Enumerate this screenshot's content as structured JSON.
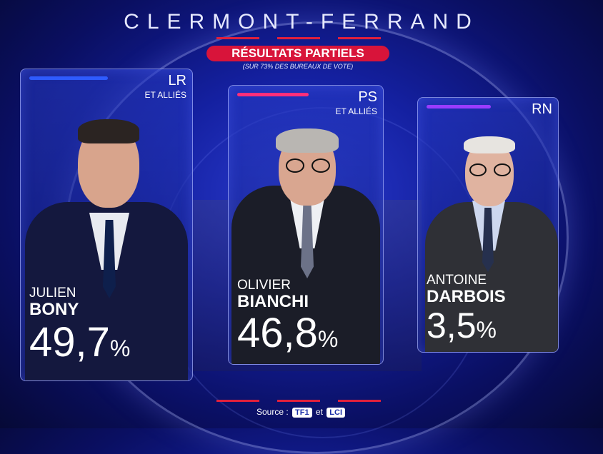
{
  "title": "CLERMONT-FERRAND",
  "banner": "RÉSULTATS PARTIELS",
  "banner_note": "(SUR 73% DES BUREAUX DE VOTE)",
  "colors": {
    "accent_red": "#d8143a",
    "lr_blue": "#2e5bff",
    "ps_pink": "#ff2e7a",
    "rn_purple": "#9a3cff"
  },
  "candidates": [
    {
      "party": "LR",
      "party_sub": "ET ALLIÉS",
      "first_name": "JULIEN",
      "last_name": "BONY",
      "score": "49,7",
      "pct": "%"
    },
    {
      "party": "PS",
      "party_sub": "ET ALLIÉS",
      "first_name": "OLIVIER",
      "last_name": "BIANCHI",
      "score": "46,8",
      "pct": "%"
    },
    {
      "party": "RN",
      "party_sub": "",
      "first_name": "ANTOINE",
      "last_name": "DARBOIS",
      "score": "3,5",
      "pct": "%"
    }
  ],
  "source": {
    "label": "Source :",
    "logo1": "TF1",
    "conj": "et",
    "logo2": "LCI"
  }
}
